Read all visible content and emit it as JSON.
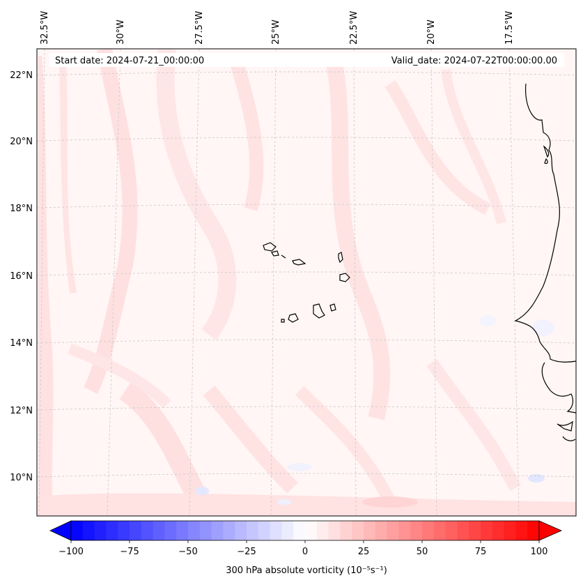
{
  "header": {
    "start_date": "Start date: 2024-07-21_00:00:00",
    "valid_date": "Valid_date: 2024-07-22T00:00:00.00"
  },
  "map": {
    "longitude_labels": [
      "32.5°W",
      "30°W",
      "27.5°W",
      "25°W",
      "22.5°W",
      "20°W",
      "17.5°W"
    ],
    "latitude_labels": [
      "22°N",
      "20°N",
      "18°N",
      "16°N",
      "14°N",
      "12°N",
      "10°N"
    ],
    "field": "300 hPa absolute vorticity",
    "colors": {
      "positive": "#ff0000",
      "negative": "#0000ff",
      "zero": "#ffffff",
      "coastline": "#000000",
      "gridline": "#c8c8c8"
    }
  },
  "colorbar": {
    "label": "300 hPa absolute vorticity (10⁻⁵s⁻¹)",
    "ticks": [
      "−100",
      "−75",
      "−50",
      "−25",
      "0",
      "25",
      "50",
      "75",
      "100"
    ],
    "range": [
      -100,
      100
    ],
    "colormap": "bwr",
    "extend": "both"
  }
}
